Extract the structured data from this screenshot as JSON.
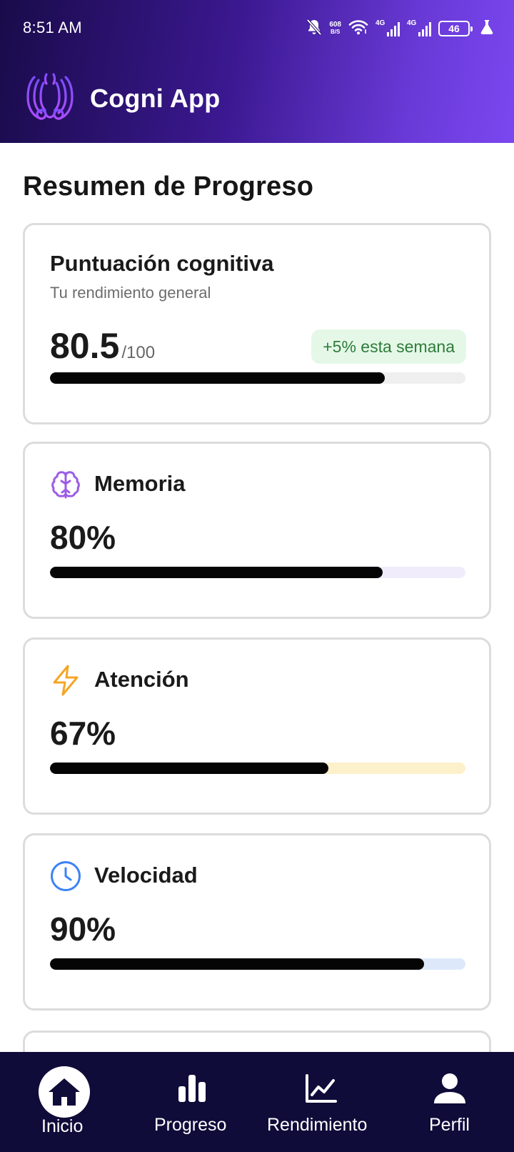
{
  "status_bar": {
    "time": "8:51 AM",
    "net_speed_value": "608",
    "net_speed_unit": "B/S",
    "signal1_label": "4G",
    "signal2_label": "4G",
    "battery": "46",
    "icons": [
      "bell-off-icon",
      "wifi-icon",
      "signal-icon",
      "battery-icon",
      "flask-icon"
    ]
  },
  "app": {
    "title": "Cogni App",
    "logo": "brain-outline-logo"
  },
  "main": {
    "section_title": "Resumen de Progreso",
    "score_card": {
      "title": "Puntuación cognitiva",
      "subtitle": "Tu rendimiento general",
      "score": "80.5",
      "max": "/100",
      "badge": "+5% esta semana",
      "progress": 0.805
    },
    "metrics": [
      {
        "name": "Memoria",
        "value": "80%",
        "progress": 0.8,
        "icon": "brain-icon",
        "icon_color": "#9b5de5",
        "track_color": "#f1ecfb"
      },
      {
        "name": "Atención",
        "value": "67%",
        "progress": 0.67,
        "icon": "lightning-icon",
        "icon_color": "#f5a524",
        "track_color": "#fdf1cb"
      },
      {
        "name": "Velocidad",
        "value": "90%",
        "progress": 0.9,
        "icon": "clock-icon",
        "icon_color": "#3b82f6",
        "track_color": "#dde9fb"
      }
    ]
  },
  "bottom_nav": {
    "items": [
      {
        "label": "Inicio",
        "icon": "home-icon",
        "active": true
      },
      {
        "label": "Progreso",
        "icon": "bar-chart-icon",
        "active": false
      },
      {
        "label": "Rendimiento",
        "icon": "line-chart-icon",
        "active": false
      },
      {
        "label": "Perfil",
        "icon": "user-icon",
        "active": false
      }
    ]
  },
  "colors": {
    "header_gradient_start": "#190b4a",
    "header_gradient_end": "#7b47f0",
    "nav_background": "#0f0c3a",
    "badge_background": "#e5f8e7",
    "badge_text": "#2d7b3a",
    "bar_fill": "#050505"
  }
}
